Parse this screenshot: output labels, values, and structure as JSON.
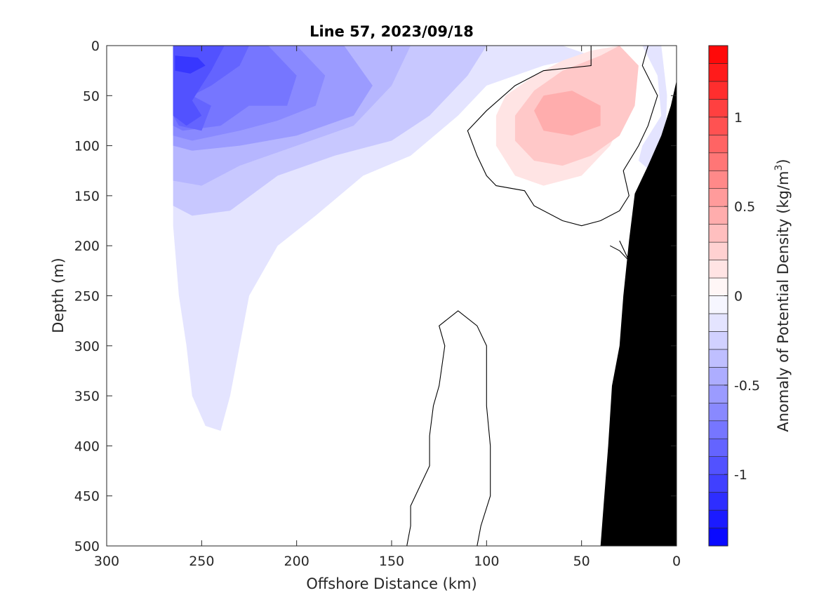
{
  "chart_data": {
    "type": "contour",
    "title": "Line 57, 2023/09/18",
    "xlabel": "Offshore Distance (km)",
    "ylabel": "Depth (m)",
    "xlim": [
      300,
      0
    ],
    "ylim": [
      500,
      0
    ],
    "x_reversed": true,
    "y_reversed": true,
    "xticks": [
      "300",
      "250",
      "200",
      "150",
      "100",
      "50",
      "0"
    ],
    "xtick_values": [
      300,
      250,
      200,
      150,
      100,
      50,
      0
    ],
    "yticks": [
      "0",
      "50",
      "100",
      "150",
      "200",
      "250",
      "300",
      "350",
      "400",
      "450",
      "500"
    ],
    "ytick_values": [
      0,
      50,
      100,
      150,
      200,
      250,
      300,
      350,
      400,
      450,
      500
    ],
    "colorbar": {
      "label_main": "Anomaly of Potential Density (kg/m",
      "label_sup": "3",
      "label_close": ")",
      "range": [
        -1.4,
        1.4
      ],
      "step": 0.1,
      "ticks": [
        "1",
        "0.5",
        "0",
        "-0.5",
        "-1"
      ],
      "tick_values": [
        1,
        0.5,
        0,
        -0.5,
        -1
      ],
      "neg_color": "#0000ff",
      "pos_color": "#ff0000",
      "mid_color": "#ffffff"
    },
    "bathymetry_color": "#000000",
    "anomaly_patches": [
      {
        "level": -0.15,
        "points": [
          [
            265,
            0
          ],
          [
            60,
            0
          ],
          [
            45,
            10
          ],
          [
            70,
            20
          ],
          [
            100,
            40
          ],
          [
            115,
            70
          ],
          [
            140,
            110
          ],
          [
            165,
            130
          ],
          [
            190,
            170
          ],
          [
            210,
            200
          ],
          [
            225,
            250
          ],
          [
            230,
            300
          ],
          [
            235,
            350
          ],
          [
            240,
            385
          ],
          [
            248,
            380
          ],
          [
            255,
            350
          ],
          [
            258,
            300
          ],
          [
            262,
            250
          ],
          [
            265,
            180
          ]
        ]
      },
      {
        "level": -0.3,
        "points": [
          [
            265,
            0
          ],
          [
            100,
            0
          ],
          [
            110,
            30
          ],
          [
            130,
            70
          ],
          [
            150,
            95
          ],
          [
            180,
            110
          ],
          [
            210,
            130
          ],
          [
            235,
            165
          ],
          [
            255,
            170
          ],
          [
            265,
            160
          ]
        ]
      },
      {
        "level": -0.4,
        "points": [
          [
            265,
            0
          ],
          [
            140,
            0
          ],
          [
            150,
            40
          ],
          [
            170,
            80
          ],
          [
            200,
            100
          ],
          [
            230,
            120
          ],
          [
            250,
            140
          ],
          [
            265,
            135
          ]
        ]
      },
      {
        "level": -0.55,
        "points": [
          [
            265,
            0
          ],
          [
            175,
            0
          ],
          [
            160,
            40
          ],
          [
            170,
            70
          ],
          [
            200,
            90
          ],
          [
            230,
            100
          ],
          [
            255,
            105
          ],
          [
            265,
            100
          ]
        ]
      },
      {
        "level": -0.65,
        "points": [
          [
            265,
            0
          ],
          [
            200,
            0
          ],
          [
            185,
            30
          ],
          [
            190,
            60
          ],
          [
            210,
            75
          ],
          [
            230,
            85
          ],
          [
            255,
            95
          ],
          [
            265,
            90
          ]
        ]
      },
      {
        "level": -0.75,
        "points": [
          [
            265,
            0
          ],
          [
            215,
            0
          ],
          [
            200,
            30
          ],
          [
            205,
            60
          ],
          [
            225,
            60
          ],
          [
            240,
            80
          ],
          [
            260,
            85
          ],
          [
            265,
            80
          ]
        ]
      },
      {
        "level": -0.85,
        "points": [
          [
            265,
            0
          ],
          [
            225,
            0
          ],
          [
            230,
            20
          ],
          [
            245,
            40
          ],
          [
            255,
            50
          ],
          [
            245,
            60
          ],
          [
            250,
            85
          ],
          [
            262,
            80
          ],
          [
            265,
            70
          ]
        ]
      },
      {
        "level": -0.95,
        "points": [
          [
            265,
            0
          ],
          [
            238,
            0
          ],
          [
            245,
            25
          ],
          [
            250,
            40
          ],
          [
            255,
            55
          ],
          [
            250,
            70
          ],
          [
            258,
            80
          ],
          [
            265,
            70
          ]
        ]
      },
      {
        "level": -1.1,
        "points": [
          [
            264,
            10
          ],
          [
            252,
            12
          ],
          [
            248,
            20
          ],
          [
            256,
            28
          ],
          [
            264,
            25
          ]
        ]
      },
      {
        "level": -0.15,
        "points": [
          [
            18,
            0
          ],
          [
            10,
            30
          ],
          [
            8,
            70
          ],
          [
            18,
            100
          ],
          [
            20,
            115
          ],
          [
            14,
            125
          ],
          [
            6,
            100
          ],
          [
            5,
            50
          ],
          [
            8,
            0
          ]
        ]
      },
      {
        "level": 0.15,
        "points": [
          [
            45,
            5
          ],
          [
            30,
            0
          ],
          [
            22,
            20
          ],
          [
            25,
            60
          ],
          [
            35,
            100
          ],
          [
            50,
            130
          ],
          [
            70,
            140
          ],
          [
            85,
            130
          ],
          [
            95,
            100
          ],
          [
            95,
            70
          ],
          [
            90,
            50
          ],
          [
            75,
            30
          ],
          [
            60,
            15
          ]
        ]
      },
      {
        "level": 0.3,
        "points": [
          [
            30,
            0
          ],
          [
            20,
            20
          ],
          [
            22,
            60
          ],
          [
            30,
            90
          ],
          [
            45,
            110
          ],
          [
            60,
            120
          ],
          [
            75,
            115
          ],
          [
            85,
            95
          ],
          [
            85,
            70
          ],
          [
            75,
            45
          ],
          [
            60,
            25
          ],
          [
            40,
            10
          ]
        ]
      },
      {
        "level": 0.45,
        "points": [
          [
            70,
            50
          ],
          [
            55,
            45
          ],
          [
            40,
            60
          ],
          [
            40,
            80
          ],
          [
            55,
            90
          ],
          [
            70,
            85
          ],
          [
            75,
            65
          ]
        ]
      }
    ],
    "contours_zero": [
      [
        [
          45,
          0
        ],
        [
          45,
          20
        ],
        [
          70,
          25
        ],
        [
          85,
          40
        ],
        [
          100,
          65
        ],
        [
          110,
          85
        ],
        [
          105,
          110
        ],
        [
          100,
          130
        ],
        [
          95,
          140
        ],
        [
          80,
          145
        ],
        [
          75,
          160
        ],
        [
          60,
          175
        ],
        [
          50,
          180
        ],
        [
          40,
          175
        ],
        [
          30,
          165
        ],
        [
          25,
          150
        ],
        [
          28,
          125
        ],
        [
          20,
          100
        ],
        [
          15,
          80
        ],
        [
          10,
          50
        ],
        [
          18,
          20
        ],
        [
          15,
          0
        ]
      ],
      [
        [
          142,
          500
        ],
        [
          140,
          480
        ],
        [
          140,
          460
        ],
        [
          135,
          440
        ],
        [
          130,
          420
        ],
        [
          130,
          390
        ],
        [
          128,
          360
        ],
        [
          125,
          340
        ],
        [
          122,
          300
        ],
        [
          125,
          280
        ],
        [
          115,
          265
        ],
        [
          105,
          280
        ],
        [
          100,
          300
        ],
        [
          100,
          360
        ],
        [
          98,
          400
        ],
        [
          98,
          450
        ],
        [
          103,
          480
        ],
        [
          105,
          500
        ]
      ],
      [
        [
          30,
          195
        ],
        [
          25,
          215
        ],
        [
          30,
          205
        ],
        [
          35,
          200
        ]
      ]
    ],
    "bathymetry": [
      [
        0,
        35
      ],
      [
        3,
        60
      ],
      [
        8,
        90
      ],
      [
        15,
        120
      ],
      [
        22,
        148
      ],
      [
        25,
        195
      ],
      [
        28,
        250
      ],
      [
        30,
        300
      ],
      [
        34,
        340
      ],
      [
        36,
        400
      ],
      [
        38,
        450
      ],
      [
        40,
        500
      ],
      [
        0,
        500
      ]
    ]
  }
}
